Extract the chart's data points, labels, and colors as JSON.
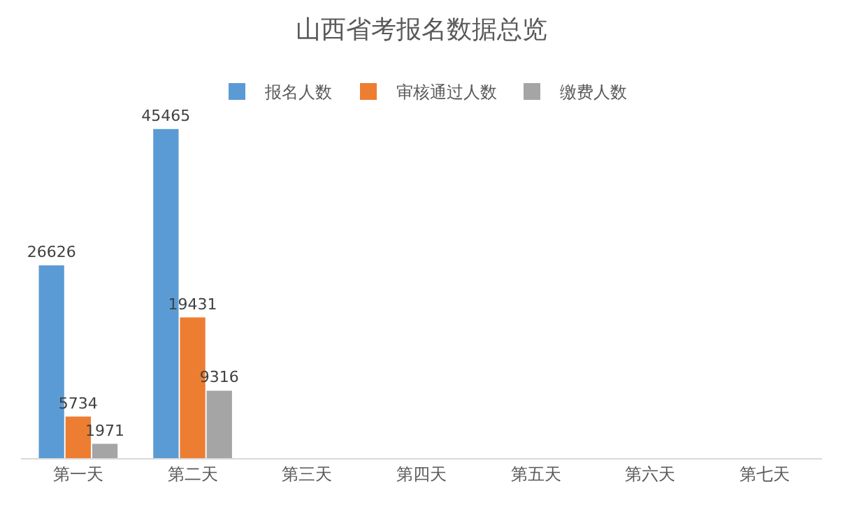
{
  "chart_data": {
    "type": "bar",
    "title": "山西省考报名数据总览",
    "categories": [
      "第一天",
      "第二天",
      "第三天",
      "第四天",
      "第五天",
      "第六天",
      "第七天"
    ],
    "series": [
      {
        "name": "报名人数",
        "color": "#5b9bd5",
        "values": [
          26626,
          45465,
          null,
          null,
          null,
          null,
          null
        ]
      },
      {
        "name": "审核通过人数",
        "color": "#ed7d31",
        "values": [
          5734,
          19431,
          null,
          null,
          null,
          null,
          null
        ]
      },
      {
        "name": "缴费人数",
        "color": "#a5a5a5",
        "values": [
          1971,
          9316,
          null,
          null,
          null,
          null,
          null
        ]
      }
    ],
    "data_labels": true,
    "legend": "top",
    "tick_labels": "x"
  }
}
